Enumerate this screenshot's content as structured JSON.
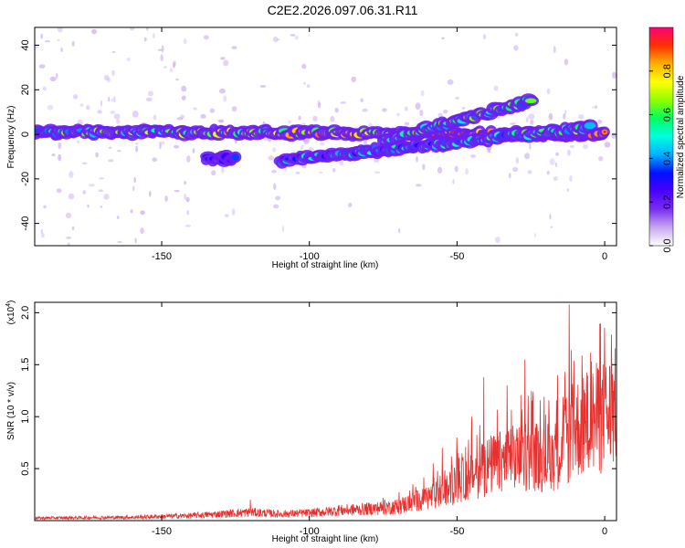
{
  "title": "C2E2.2026.097.06.31.R11",
  "colors": {
    "snr_line": "#e8312f",
    "frame": "#000000",
    "colormap": [
      "#ffffff",
      "#c8a8ee",
      "#7a2ef0",
      "#4b00ff",
      "#0010ff",
      "#00b0ff",
      "#00ffe0",
      "#00ff60",
      "#90ff00",
      "#ffff00",
      "#ffb000",
      "#ff3000",
      "#ff0078"
    ]
  },
  "chart_data": [
    {
      "type": "heatmap",
      "title": "",
      "xlabel": "Height of straight line (km)",
      "ylabel": "Frequency (Hz)",
      "xlim": [
        -193,
        4
      ],
      "ylim": [
        -50,
        48
      ],
      "xticks": [
        -150,
        -100,
        -50,
        0
      ],
      "yticks": [
        -40,
        -20,
        0,
        20,
        40
      ],
      "colorbar": {
        "label": "Normalized spectral amplitude",
        "range": [
          0,
          1
        ],
        "ticks": [
          0.0,
          0.2,
          0.4,
          0.6,
          0.8
        ]
      },
      "features": [
        {
          "x": [
            -193,
            0
          ],
          "y_start": 1,
          "y_end": 0,
          "intensity_start": 0.5,
          "intensity_end": 0.95
        },
        {
          "x": [
            -75,
            -25
          ],
          "y_start": -3,
          "y_end": 15,
          "intensity_start": 0.55,
          "intensity_end": 0.5
        },
        {
          "x": [
            -110,
            -5
          ],
          "y_start": -12,
          "y_end": 3,
          "intensity_start": 0.35,
          "intensity_end": 0.55
        },
        {
          "x": [
            -135,
            -125
          ],
          "y_start": -11,
          "y_end": -11,
          "intensity_start": 0.3,
          "intensity_end": 0.3
        }
      ]
    },
    {
      "type": "line",
      "title": "",
      "xlabel": "Height of straight line (km)",
      "ylabel": "SNR (10 * v/v)",
      "y_scale_label": "(x10",
      "y_scale_exp": "4",
      "y_scale_close": ")",
      "xlim": [
        -193,
        4
      ],
      "ylim": [
        0,
        2.1
      ],
      "xticks": [
        -150,
        -100,
        -50,
        0
      ],
      "yticks": [
        0.5,
        1.0,
        1.5,
        2.0
      ],
      "ytick_labels": [
        "0.5",
        "1.0",
        "1.5",
        "2.0"
      ],
      "series": [
        {
          "envelope": {
            "x": [
              -193,
              -160,
              -140,
              -130,
              -120,
              -110,
              -100,
              -90,
              -80,
              -70,
              -60,
              -55,
              -50,
              -45,
              -40,
              -35,
              -30,
              -25,
              -20,
              -15,
              -12,
              -10,
              -5,
              0,
              4
            ],
            "y": [
              0.03,
              0.04,
              0.06,
              0.08,
              0.1,
              0.08,
              0.09,
              0.12,
              0.14,
              0.17,
              0.28,
              0.32,
              0.45,
              0.55,
              0.65,
              0.7,
              0.75,
              0.8,
              0.75,
              0.85,
              1.0,
              1.1,
              1.2,
              1.25,
              1.35
            ]
          },
          "peaks": {
            "x": [
              -120,
              -90,
              -75,
              -65,
              -58,
              -55,
              -50,
              -45,
              -41,
              -33,
              -27,
              -20,
              -16,
              -12,
              -2,
              0
            ],
            "y": [
              0.2,
              0.15,
              0.22,
              0.35,
              0.55,
              0.7,
              0.8,
              1.0,
              1.38,
              1.3,
              1.55,
              1.02,
              1.4,
              2.08,
              1.45,
              1.42
            ]
          }
        }
      ]
    }
  ]
}
